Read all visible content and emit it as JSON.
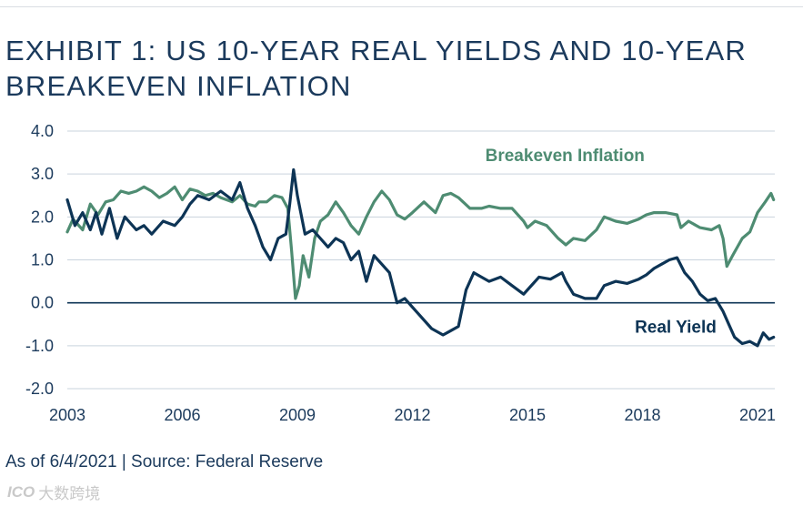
{
  "chart_data": {
    "type": "line",
    "title": "EXHIBIT 1: US 10-YEAR REAL YIELDS AND 10-YEAR BREAKEVEN INFLATION",
    "xlabel": "",
    "ylabel": "",
    "xlim": [
      2003.0,
      2021.45
    ],
    "ylim": [
      -2.0,
      4.0
    ],
    "x_ticks": [
      2003,
      2006,
      2009,
      2012,
      2015,
      2018,
      2021
    ],
    "x_tick_labels": [
      "2003",
      "2006",
      "2009",
      "2012",
      "2015",
      "2018",
      "2021"
    ],
    "y_ticks": [
      4.0,
      3.0,
      2.0,
      1.0,
      0.0,
      -1.0,
      -2.0
    ],
    "y_tick_labels": [
      "4.0",
      "3.0",
      "2.0",
      "1.0",
      "0.0",
      "-1.0",
      "-2.0"
    ],
    "grid": "horizontal",
    "series": [
      {
        "name": "Breakeven Inflation",
        "color": "#4e8c72",
        "points": [
          [
            2003.0,
            1.65
          ],
          [
            2003.15,
            1.95
          ],
          [
            2003.4,
            1.7
          ],
          [
            2003.6,
            2.3
          ],
          [
            2003.8,
            2.05
          ],
          [
            2004.0,
            2.35
          ],
          [
            2004.2,
            2.4
          ],
          [
            2004.4,
            2.6
          ],
          [
            2004.6,
            2.55
          ],
          [
            2004.8,
            2.6
          ],
          [
            2005.0,
            2.7
          ],
          [
            2005.2,
            2.6
          ],
          [
            2005.4,
            2.45
          ],
          [
            2005.6,
            2.55
          ],
          [
            2005.8,
            2.7
          ],
          [
            2006.0,
            2.4
          ],
          [
            2006.2,
            2.65
          ],
          [
            2006.4,
            2.6
          ],
          [
            2006.6,
            2.5
          ],
          [
            2006.8,
            2.55
          ],
          [
            2007.0,
            2.45
          ],
          [
            2007.3,
            2.35
          ],
          [
            2007.5,
            2.5
          ],
          [
            2007.7,
            2.3
          ],
          [
            2007.9,
            2.25
          ],
          [
            2008.0,
            2.35
          ],
          [
            2008.2,
            2.35
          ],
          [
            2008.4,
            2.5
          ],
          [
            2008.6,
            2.45
          ],
          [
            2008.75,
            2.2
          ],
          [
            2008.85,
            1.2
          ],
          [
            2008.95,
            0.1
          ],
          [
            2009.05,
            0.4
          ],
          [
            2009.15,
            1.1
          ],
          [
            2009.3,
            0.6
          ],
          [
            2009.45,
            1.5
          ],
          [
            2009.6,
            1.9
          ],
          [
            2009.8,
            2.05
          ],
          [
            2010.0,
            2.35
          ],
          [
            2010.2,
            2.1
          ],
          [
            2010.4,
            1.8
          ],
          [
            2010.6,
            1.6
          ],
          [
            2010.8,
            2.0
          ],
          [
            2011.0,
            2.35
          ],
          [
            2011.2,
            2.6
          ],
          [
            2011.4,
            2.4
          ],
          [
            2011.6,
            2.05
          ],
          [
            2011.8,
            1.95
          ],
          [
            2012.0,
            2.1
          ],
          [
            2012.3,
            2.35
          ],
          [
            2012.6,
            2.1
          ],
          [
            2012.8,
            2.5
          ],
          [
            2013.0,
            2.55
          ],
          [
            2013.2,
            2.45
          ],
          [
            2013.5,
            2.2
          ],
          [
            2013.8,
            2.2
          ],
          [
            2014.0,
            2.25
          ],
          [
            2014.3,
            2.2
          ],
          [
            2014.6,
            2.2
          ],
          [
            2014.9,
            1.9
          ],
          [
            2015.0,
            1.75
          ],
          [
            2015.2,
            1.9
          ],
          [
            2015.5,
            1.8
          ],
          [
            2015.8,
            1.5
          ],
          [
            2016.0,
            1.35
          ],
          [
            2016.2,
            1.5
          ],
          [
            2016.5,
            1.45
          ],
          [
            2016.8,
            1.7
          ],
          [
            2017.0,
            2.0
          ],
          [
            2017.3,
            1.9
          ],
          [
            2017.6,
            1.85
          ],
          [
            2017.9,
            1.95
          ],
          [
            2018.1,
            2.05
          ],
          [
            2018.3,
            2.1
          ],
          [
            2018.6,
            2.1
          ],
          [
            2018.9,
            2.05
          ],
          [
            2019.0,
            1.75
          ],
          [
            2019.2,
            1.9
          ],
          [
            2019.5,
            1.75
          ],
          [
            2019.8,
            1.7
          ],
          [
            2020.0,
            1.8
          ],
          [
            2020.1,
            1.5
          ],
          [
            2020.2,
            0.85
          ],
          [
            2020.35,
            1.1
          ],
          [
            2020.6,
            1.5
          ],
          [
            2020.8,
            1.65
          ],
          [
            2021.0,
            2.1
          ],
          [
            2021.2,
            2.35
          ],
          [
            2021.35,
            2.55
          ],
          [
            2021.42,
            2.4
          ]
        ]
      },
      {
        "name": "Real Yield",
        "color": "#0d3455",
        "points": [
          [
            2003.0,
            2.4
          ],
          [
            2003.2,
            1.8
          ],
          [
            2003.4,
            2.1
          ],
          [
            2003.6,
            1.7
          ],
          [
            2003.75,
            2.1
          ],
          [
            2003.9,
            1.6
          ],
          [
            2004.1,
            2.2
          ],
          [
            2004.3,
            1.5
          ],
          [
            2004.5,
            2.0
          ],
          [
            2004.8,
            1.7
          ],
          [
            2005.0,
            1.8
          ],
          [
            2005.2,
            1.6
          ],
          [
            2005.5,
            1.9
          ],
          [
            2005.8,
            1.8
          ],
          [
            2006.0,
            2.0
          ],
          [
            2006.2,
            2.3
          ],
          [
            2006.4,
            2.5
          ],
          [
            2006.7,
            2.4
          ],
          [
            2007.0,
            2.6
          ],
          [
            2007.3,
            2.4
          ],
          [
            2007.5,
            2.8
          ],
          [
            2007.7,
            2.2
          ],
          [
            2007.9,
            1.8
          ],
          [
            2008.1,
            1.3
          ],
          [
            2008.3,
            1.0
          ],
          [
            2008.5,
            1.5
          ],
          [
            2008.7,
            1.6
          ],
          [
            2008.8,
            2.3
          ],
          [
            2008.9,
            3.1
          ],
          [
            2009.0,
            2.5
          ],
          [
            2009.2,
            1.6
          ],
          [
            2009.4,
            1.7
          ],
          [
            2009.6,
            1.5
          ],
          [
            2009.8,
            1.3
          ],
          [
            2010.0,
            1.5
          ],
          [
            2010.2,
            1.4
          ],
          [
            2010.4,
            1.0
          ],
          [
            2010.6,
            1.2
          ],
          [
            2010.8,
            0.5
          ],
          [
            2011.0,
            1.1
          ],
          [
            2011.2,
            0.9
          ],
          [
            2011.4,
            0.7
          ],
          [
            2011.6,
            0.0
          ],
          [
            2011.8,
            0.1
          ],
          [
            2012.0,
            -0.1
          ],
          [
            2012.2,
            -0.3
          ],
          [
            2012.5,
            -0.6
          ],
          [
            2012.8,
            -0.75
          ],
          [
            2013.0,
            -0.65
          ],
          [
            2013.2,
            -0.55
          ],
          [
            2013.4,
            0.3
          ],
          [
            2013.6,
            0.7
          ],
          [
            2013.8,
            0.6
          ],
          [
            2014.0,
            0.5
          ],
          [
            2014.3,
            0.6
          ],
          [
            2014.6,
            0.4
          ],
          [
            2014.9,
            0.2
          ],
          [
            2015.0,
            0.3
          ],
          [
            2015.3,
            0.6
          ],
          [
            2015.6,
            0.55
          ],
          [
            2015.9,
            0.7
          ],
          [
            2016.0,
            0.5
          ],
          [
            2016.2,
            0.2
          ],
          [
            2016.5,
            0.1
          ],
          [
            2016.8,
            0.1
          ],
          [
            2017.0,
            0.4
          ],
          [
            2017.3,
            0.5
          ],
          [
            2017.6,
            0.45
          ],
          [
            2017.9,
            0.55
          ],
          [
            2018.1,
            0.65
          ],
          [
            2018.3,
            0.8
          ],
          [
            2018.5,
            0.9
          ],
          [
            2018.7,
            1.0
          ],
          [
            2018.9,
            1.05
          ],
          [
            2019.1,
            0.7
          ],
          [
            2019.3,
            0.5
          ],
          [
            2019.5,
            0.2
          ],
          [
            2019.7,
            0.05
          ],
          [
            2019.9,
            0.1
          ],
          [
            2020.1,
            -0.2
          ],
          [
            2020.25,
            -0.5
          ],
          [
            2020.4,
            -0.8
          ],
          [
            2020.6,
            -0.95
          ],
          [
            2020.8,
            -0.9
          ],
          [
            2021.0,
            -1.0
          ],
          [
            2021.15,
            -0.7
          ],
          [
            2021.3,
            -0.85
          ],
          [
            2021.42,
            -0.8
          ]
        ]
      }
    ],
    "annotations": [
      {
        "text": "Breakeven Inflation",
        "series": "Breakeven Inflation",
        "x": 2013.9,
        "y": 3.3
      },
      {
        "text": "Real Yield",
        "series": "Real Yield",
        "x": 2017.8,
        "y": -0.7
      }
    ]
  },
  "footnote": "As of 6/4/2021 | Source: Federal Reserve",
  "watermark": {
    "logo": "ICO",
    "text": "大数跨境"
  }
}
